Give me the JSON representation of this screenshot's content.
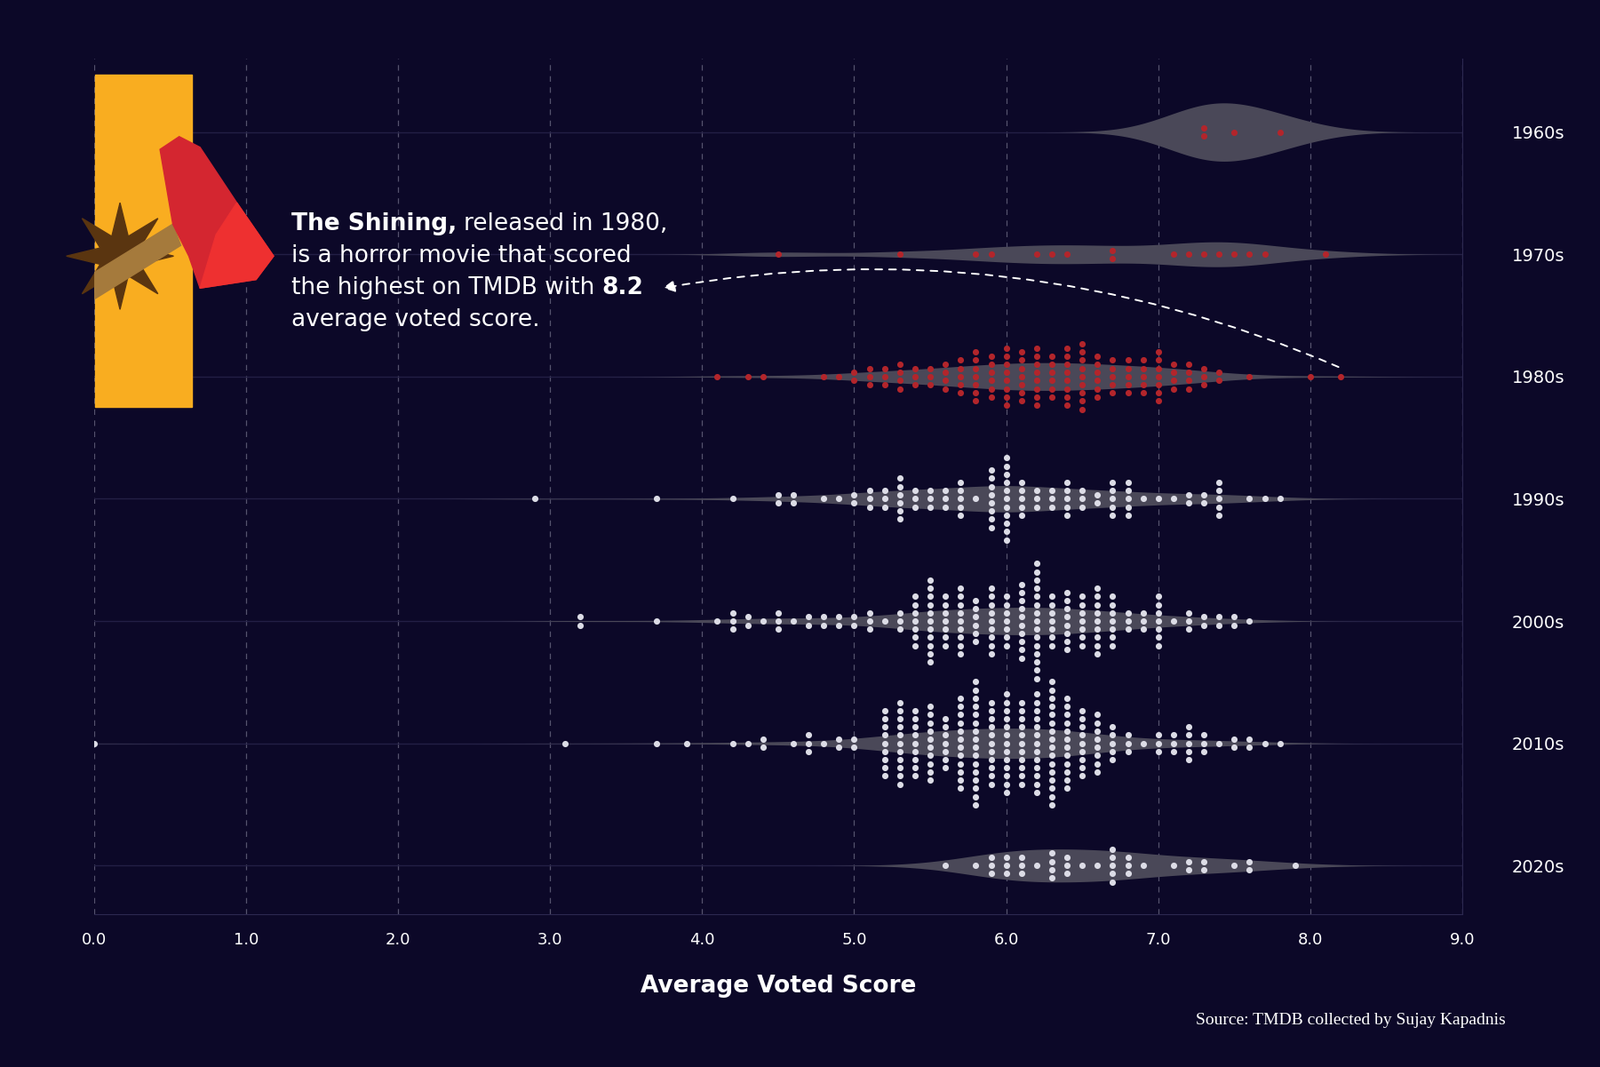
{
  "chart_data": {
    "type": "beeswarm",
    "x_label": "Average Voted Score",
    "source": "Source: TMDB collected by Sujay Kapadnis",
    "categories": [
      "1960s",
      "1970s",
      "1980s",
      "1990s",
      "2000s",
      "2010s",
      "2020s"
    ],
    "colors": [
      "#b3252b",
      "#b3252b",
      "#b3252b",
      "#dcdce6",
      "#dcdce6",
      "#dcdce6",
      "#dcdce6"
    ],
    "values": [
      [
        7.3,
        7.5,
        7.8
      ],
      [
        4.5,
        5.3,
        5.8,
        5.9,
        6.2,
        6.3,
        6.4,
        6.7,
        7.1,
        7.2,
        7.3,
        7.4,
        7.5,
        7.6,
        7.7,
        8.1
      ],
      [
        4.1,
        4.3,
        4.4,
        4.8,
        4.9,
        5.0,
        5.1,
        5.2,
        5.3,
        5.4,
        5.5,
        5.6,
        5.7,
        5.8,
        5.9,
        6.0,
        6.1,
        6.2,
        6.3,
        6.4,
        6.5,
        6.6,
        6.7,
        6.8,
        6.9,
        7.0,
        7.1,
        7.2,
        7.3,
        7.4,
        7.6,
        8.0,
        8.2
      ],
      [
        2.9,
        3.7,
        4.2,
        4.5,
        4.6,
        4.8,
        4.9,
        5.0,
        5.1,
        5.2,
        5.3,
        5.4,
        5.5,
        5.6,
        5.7,
        5.8,
        5.9,
        6.0,
        6.1,
        6.2,
        6.3,
        6.4,
        6.5,
        6.6,
        6.7,
        6.8,
        6.9,
        7.0,
        7.1,
        7.2,
        7.3,
        7.4,
        7.6,
        7.7,
        7.8
      ],
      [
        3.2,
        3.7,
        4.1,
        4.2,
        4.3,
        4.4,
        4.5,
        4.6,
        4.7,
        4.8,
        4.9,
        5.0,
        5.1,
        5.2,
        5.3,
        5.4,
        5.5,
        5.6,
        5.7,
        5.8,
        5.9,
        6.0,
        6.1,
        6.2,
        6.3,
        6.4,
        6.5,
        6.6,
        6.7,
        6.8,
        6.9,
        7.0,
        7.1,
        7.2,
        7.3,
        7.4,
        7.5,
        7.6
      ],
      [
        0.0,
        3.1,
        3.7,
        3.9,
        4.2,
        4.3,
        4.4,
        4.6,
        4.7,
        4.8,
        4.9,
        5.0,
        5.2,
        5.3,
        5.4,
        5.5,
        5.6,
        5.7,
        5.8,
        5.9,
        6.0,
        6.1,
        6.2,
        6.3,
        6.4,
        6.5,
        6.6,
        6.7,
        6.8,
        6.9,
        7.0,
        7.1,
        7.2,
        7.3,
        7.4,
        7.5,
        7.6,
        7.7,
        7.8
      ],
      [
        5.6,
        5.8,
        5.9,
        6.0,
        6.1,
        6.2,
        6.3,
        6.4,
        6.5,
        6.6,
        6.7,
        6.8,
        6.9,
        7.1,
        7.2,
        7.3,
        7.5,
        7.6,
        7.9
      ]
    ],
    "counts": [
      [
        2,
        1,
        1
      ],
      [
        1,
        1,
        1,
        1,
        1,
        1,
        1,
        2,
        1,
        1,
        1,
        1,
        1,
        1,
        1,
        1
      ],
      [
        1,
        1,
        1,
        1,
        1,
        2,
        3,
        3,
        4,
        3,
        3,
        4,
        5,
        7,
        6,
        8,
        7,
        8,
        6,
        8,
        9,
        6,
        5,
        5,
        5,
        7,
        4,
        4,
        3,
        2,
        1,
        1,
        1
      ],
      [
        1,
        1,
        1,
        2,
        2,
        1,
        1,
        2,
        3,
        3,
        6,
        3,
        3,
        3,
        5,
        1,
        8,
        11,
        5,
        3,
        3,
        5,
        3,
        2,
        5,
        5,
        1,
        1,
        1,
        2,
        2,
        5,
        1,
        1,
        1
      ],
      [
        2,
        1,
        1,
        3,
        2,
        1,
        3,
        1,
        2,
        2,
        2,
        2,
        3,
        1,
        3,
        7,
        11,
        7,
        9,
        6,
        9,
        7,
        10,
        15,
        7,
        8,
        7,
        9,
        7,
        3,
        3,
        7,
        1,
        3,
        2,
        2,
        2,
        1
      ],
      [
        1,
        1,
        1,
        1,
        1,
        1,
        2,
        1,
        3,
        1,
        2,
        2,
        9,
        11,
        9,
        10,
        7,
        12,
        16,
        11,
        13,
        11,
        13,
        16,
        12,
        9,
        8,
        5,
        3,
        1,
        3,
        3,
        5,
        3,
        1,
        2,
        2,
        1,
        1
      ],
      [
        1,
        1,
        3,
        3,
        3,
        1,
        4,
        3,
        1,
        1,
        5,
        3,
        1,
        1,
        2,
        2,
        1,
        2,
        1
      ]
    ],
    "xlim": [
      0,
      9
    ],
    "xticks": [
      {
        "value": 0,
        "label": "0.0"
      },
      {
        "value": 1,
        "label": "1.0"
      },
      {
        "value": 2,
        "label": "2.0"
      },
      {
        "value": 3,
        "label": "3.0"
      },
      {
        "value": 4,
        "label": "4.0"
      },
      {
        "value": 5,
        "label": "5.0"
      },
      {
        "value": 6,
        "label": "6.0"
      },
      {
        "value": 7,
        "label": "7.0"
      },
      {
        "value": 8,
        "label": "8.0"
      },
      {
        "value": 9,
        "label": "9.0"
      }
    ],
    "grid": true,
    "annotation": {
      "lines": [
        "The Shining, released in 1980,",
        "is a horror movie that scored",
        "the highest on TMDB with 8.2",
        "average voted score."
      ],
      "bold": [
        "The Shining,",
        "8.2"
      ],
      "x": 8.2,
      "category": "1980s"
    }
  }
}
